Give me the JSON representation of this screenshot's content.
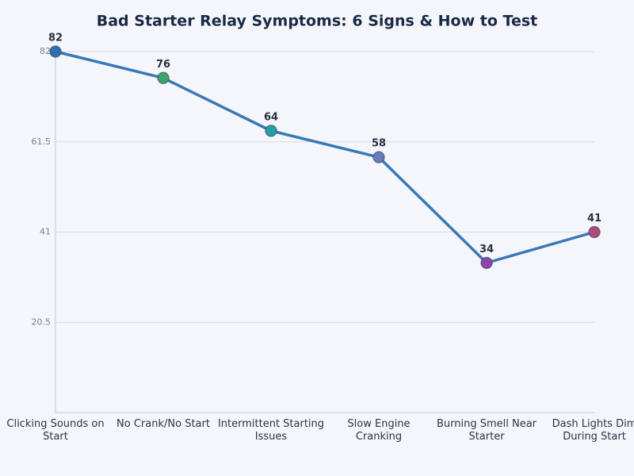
{
  "chart_data": {
    "type": "line",
    "title": "Bad Starter Relay Symptoms: 6 Signs & How to Test",
    "categories": [
      "Clicking Sounds on Start",
      "No Crank/No Start",
      "Intermittent Starting Issues",
      "Slow Engine Cranking",
      "Burning Smell Near Starter",
      "Dash Lights Dim During Start"
    ],
    "values": [
      82,
      76,
      64,
      58,
      34,
      41
    ],
    "color": "#3a78b5",
    "point_colors": [
      "#2f6fb5",
      "#3aa566",
      "#26a0a8",
      "#6a7bbf",
      "#8e44ad",
      "#b5487a"
    ],
    "ylim": [
      0,
      82
    ],
    "yticks": [
      20.5,
      41,
      61.5,
      82
    ],
    "grid": true
  }
}
